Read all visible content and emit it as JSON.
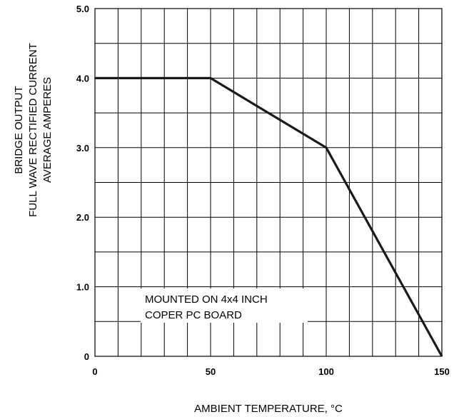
{
  "chart_data": {
    "type": "line",
    "xlabel": "AMBIENT TEMPERATURE, °C",
    "ylabel": [
      "BRIDGE OUTPUT",
      "FULL WAVE RECTIFIED CURRENT",
      "AVERAGE AMPERES"
    ],
    "xlim": [
      0,
      150
    ],
    "ylim": [
      0,
      5
    ],
    "x_ticks": [
      0,
      50,
      100,
      150
    ],
    "x_tick_labels": [
      "0",
      "50",
      "100",
      "150"
    ],
    "y_ticks": [
      0,
      1,
      2,
      3,
      4,
      5
    ],
    "y_tick_labels": [
      "0",
      "1.0",
      "2.0",
      "3.0",
      "4.0",
      "5.0"
    ],
    "grid": true,
    "x_grid_step": 10,
    "y_grid_step": 0.5,
    "series": [
      {
        "x": [
          0,
          50,
          100,
          150
        ],
        "y": [
          4.0,
          4.0,
          3.0,
          0
        ]
      }
    ],
    "annotations": [
      "MOUNTED ON 4x4 INCH",
      "COPER PC BOARD"
    ],
    "line_color": "#1a1a1a",
    "grid_color": "#000000"
  }
}
